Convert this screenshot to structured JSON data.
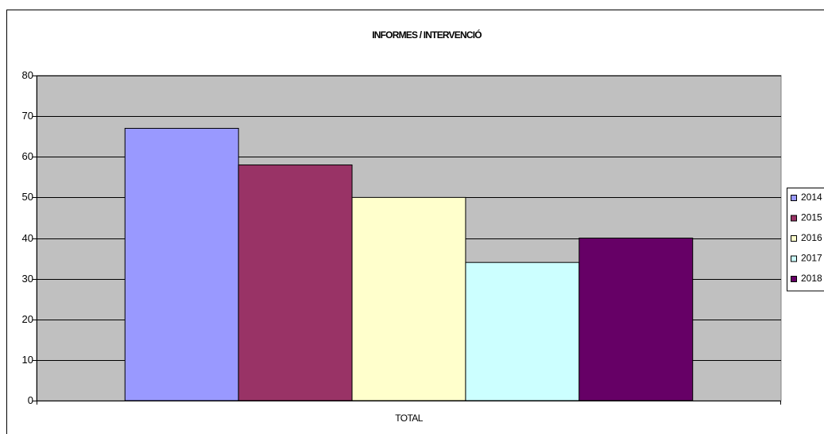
{
  "chart_data": {
    "type": "bar",
    "title": "INFORMES / INTERVENCIÓ",
    "categories": [
      "TOTAL"
    ],
    "series": [
      {
        "name": "2014",
        "color": "#9999ff",
        "values": [
          67
        ]
      },
      {
        "name": "2015",
        "color": "#993366",
        "values": [
          58
        ]
      },
      {
        "name": "2016",
        "color": "#ffffcc",
        "values": [
          50
        ]
      },
      {
        "name": "2017",
        "color": "#ccffff",
        "values": [
          34
        ]
      },
      {
        "name": "2018",
        "color": "#660066",
        "values": [
          40
        ]
      }
    ],
    "ylim": [
      0,
      80
    ],
    "yticks": [
      0,
      10,
      20,
      30,
      40,
      50,
      60,
      70,
      80
    ],
    "grid": true,
    "legend": "right"
  }
}
